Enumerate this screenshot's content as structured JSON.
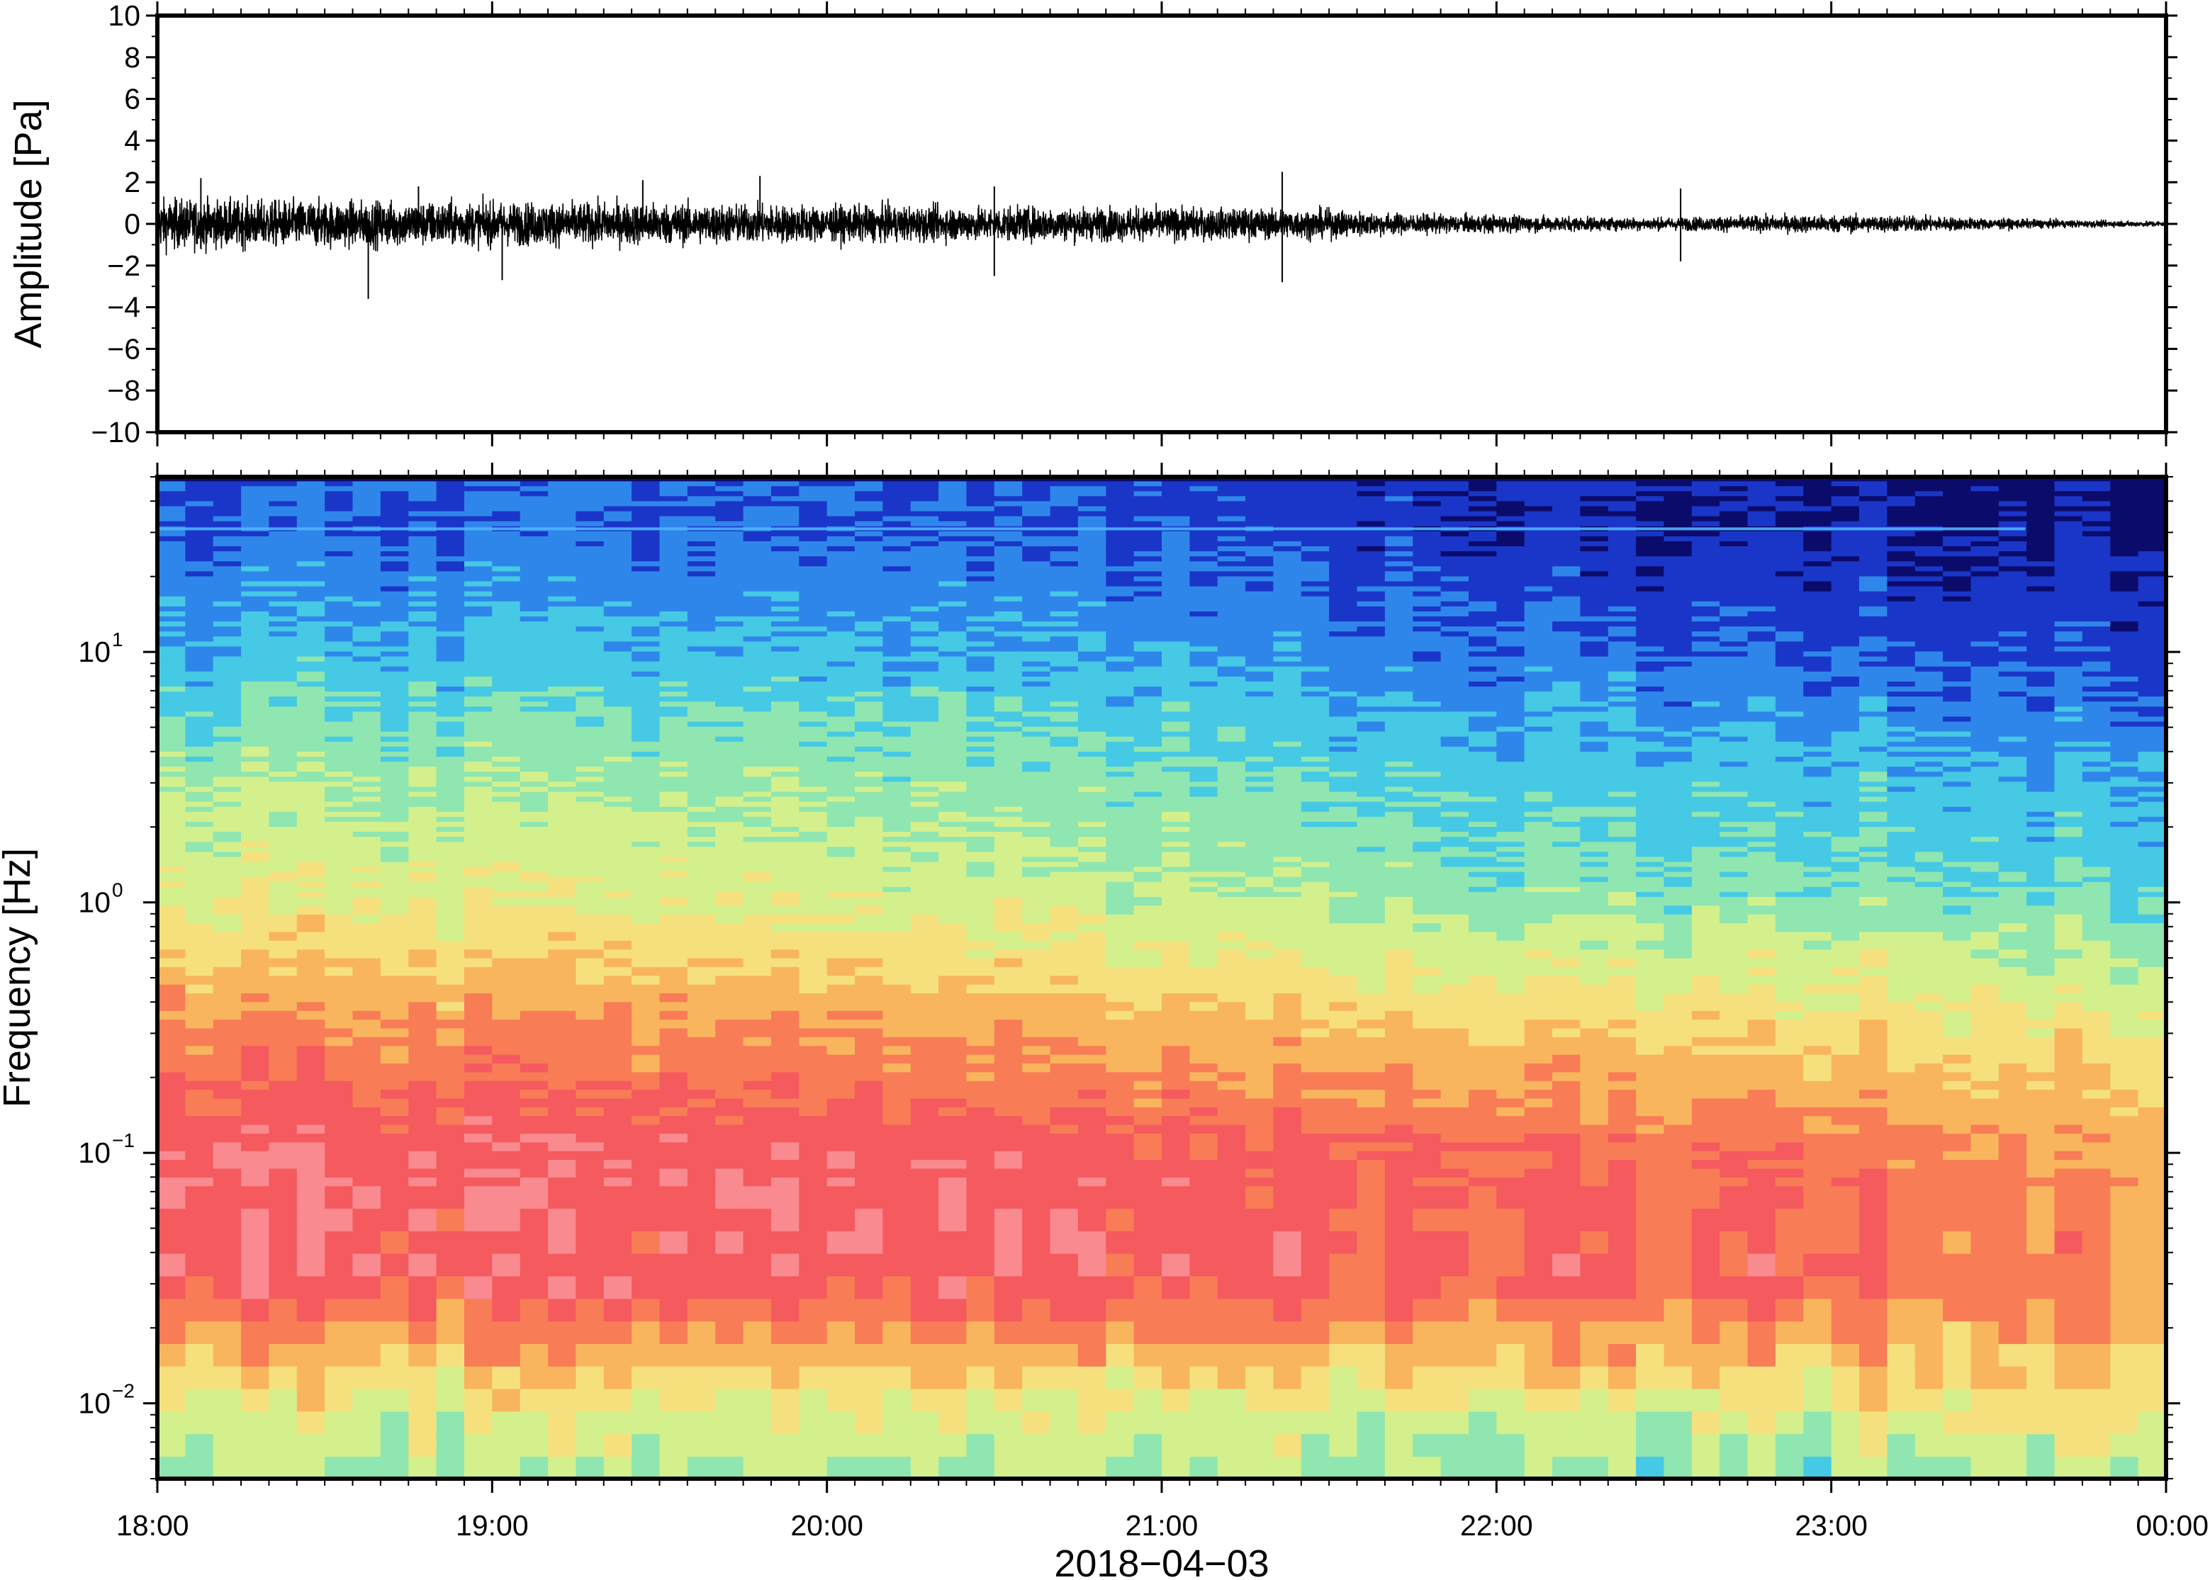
{
  "chart_data": [
    {
      "type": "line",
      "ylabel": "Amplitude [Pa]",
      "ylim": [
        -10,
        10
      ],
      "yticks": [
        "10",
        "8",
        "6",
        "4",
        "2",
        "0",
        "−2",
        "−4",
        "−6",
        "−8",
        "−10"
      ],
      "ytick_values": [
        10,
        8,
        6,
        4,
        2,
        0,
        -2,
        -4,
        -6,
        -8,
        -10
      ],
      "xlim": [
        "2018-04-03 18:00",
        "2018-04-04 00:00"
      ],
      "series": [
        {
          "envelope_hours": [
            0.0,
            0.25,
            0.5,
            0.75,
            1.0,
            1.5,
            2.0,
            2.5,
            3.0,
            3.25,
            3.5,
            3.75,
            4.0,
            4.25,
            4.5,
            4.75,
            5.0,
            5.25,
            5.5,
            5.75,
            6.0
          ],
          "envelope_pa": [
            1.4,
            1.3,
            1.3,
            1.25,
            1.2,
            1.15,
            1.0,
            0.95,
            0.9,
            0.85,
            0.8,
            0.55,
            0.5,
            0.4,
            0.35,
            0.45,
            0.5,
            0.45,
            0.3,
            0.2,
            0.15
          ],
          "spikes": [
            {
              "hour": 0.13,
              "pa": 2.2
            },
            {
              "hour": 0.63,
              "pa": -3.6
            },
            {
              "hour": 0.78,
              "pa": 1.8
            },
            {
              "hour": 1.03,
              "pa": -2.7
            },
            {
              "hour": 1.45,
              "pa": 2.1
            },
            {
              "hour": 1.8,
              "pa": 2.3
            },
            {
              "hour": 2.5,
              "pa": 1.8
            },
            {
              "hour": 2.5,
              "pa": -2.5
            },
            {
              "hour": 3.36,
              "pa": 2.5
            },
            {
              "hour": 3.36,
              "pa": -2.8
            },
            {
              "hour": 4.55,
              "pa": 1.7
            },
            {
              "hour": 4.55,
              "pa": -1.8
            }
          ]
        }
      ]
    },
    {
      "type": "heatmap",
      "ylabel": "Frequency [Hz]",
      "xlabel": "2018−04−03",
      "yscale": "log",
      "ylim": [
        0.005,
        50
      ],
      "yticks": [
        {
          "base": "10",
          "exp": "1"
        },
        {
          "base": "10",
          "exp": "0"
        },
        {
          "base": "10",
          "exp": "−1"
        },
        {
          "base": "10",
          "exp": "−2"
        }
      ],
      "ytick_values": [
        10,
        1,
        0.1,
        0.01
      ],
      "xticks": [
        "18:00",
        "19:00",
        "20:00",
        "21:00",
        "22:00",
        "23:00",
        "00:00"
      ],
      "xtick_hours": [
        0,
        1,
        2,
        3,
        4,
        5,
        6
      ],
      "colormap": [
        "#0b0b6b",
        "#1a36c8",
        "#2f86ea",
        "#46c9e4",
        "#8fe6b0",
        "#d3f08d",
        "#f6e07e",
        "#f9b55d",
        "#f87c56",
        "#f55a5e",
        "#f98a90"
      ],
      "power_rows_log10hz": [
        -2.3,
        -2.0,
        -1.5,
        -1.0,
        -0.5,
        0.0,
        0.5,
        1.0,
        1.5
      ],
      "power_cols_hours": [
        0,
        1,
        2,
        3,
        4,
        5,
        6
      ],
      "power_index": [
        [
          4.3,
          4.4,
          4.5,
          4.4,
          4.2,
          4.2,
          5.0
        ],
        [
          5.6,
          5.6,
          5.6,
          5.6,
          5.6,
          5.7,
          6.3
        ],
        [
          9.2,
          9.2,
          9.2,
          9.2,
          9.0,
          8.9,
          7.6
        ],
        [
          9.5,
          9.4,
          9.3,
          9.0,
          8.6,
          8.3,
          7.2
        ],
        [
          7.8,
          7.6,
          7.5,
          7.0,
          6.5,
          6.2,
          5.8
        ],
        [
          5.5,
          5.4,
          5.3,
          4.8,
          4.2,
          4.0,
          3.5
        ],
        [
          4.4,
          4.3,
          4.2,
          3.8,
          3.2,
          3.0,
          2.6
        ],
        [
          2.8,
          2.8,
          2.7,
          2.5,
          1.8,
          1.5,
          1.2
        ],
        [
          1.6,
          1.5,
          1.5,
          1.4,
          0.8,
          0.5,
          0.3
        ]
      ],
      "annotations": [
        {
          "type": "hline",
          "freq_hz": 31,
          "color": "#4fb4ff"
        }
      ]
    }
  ]
}
